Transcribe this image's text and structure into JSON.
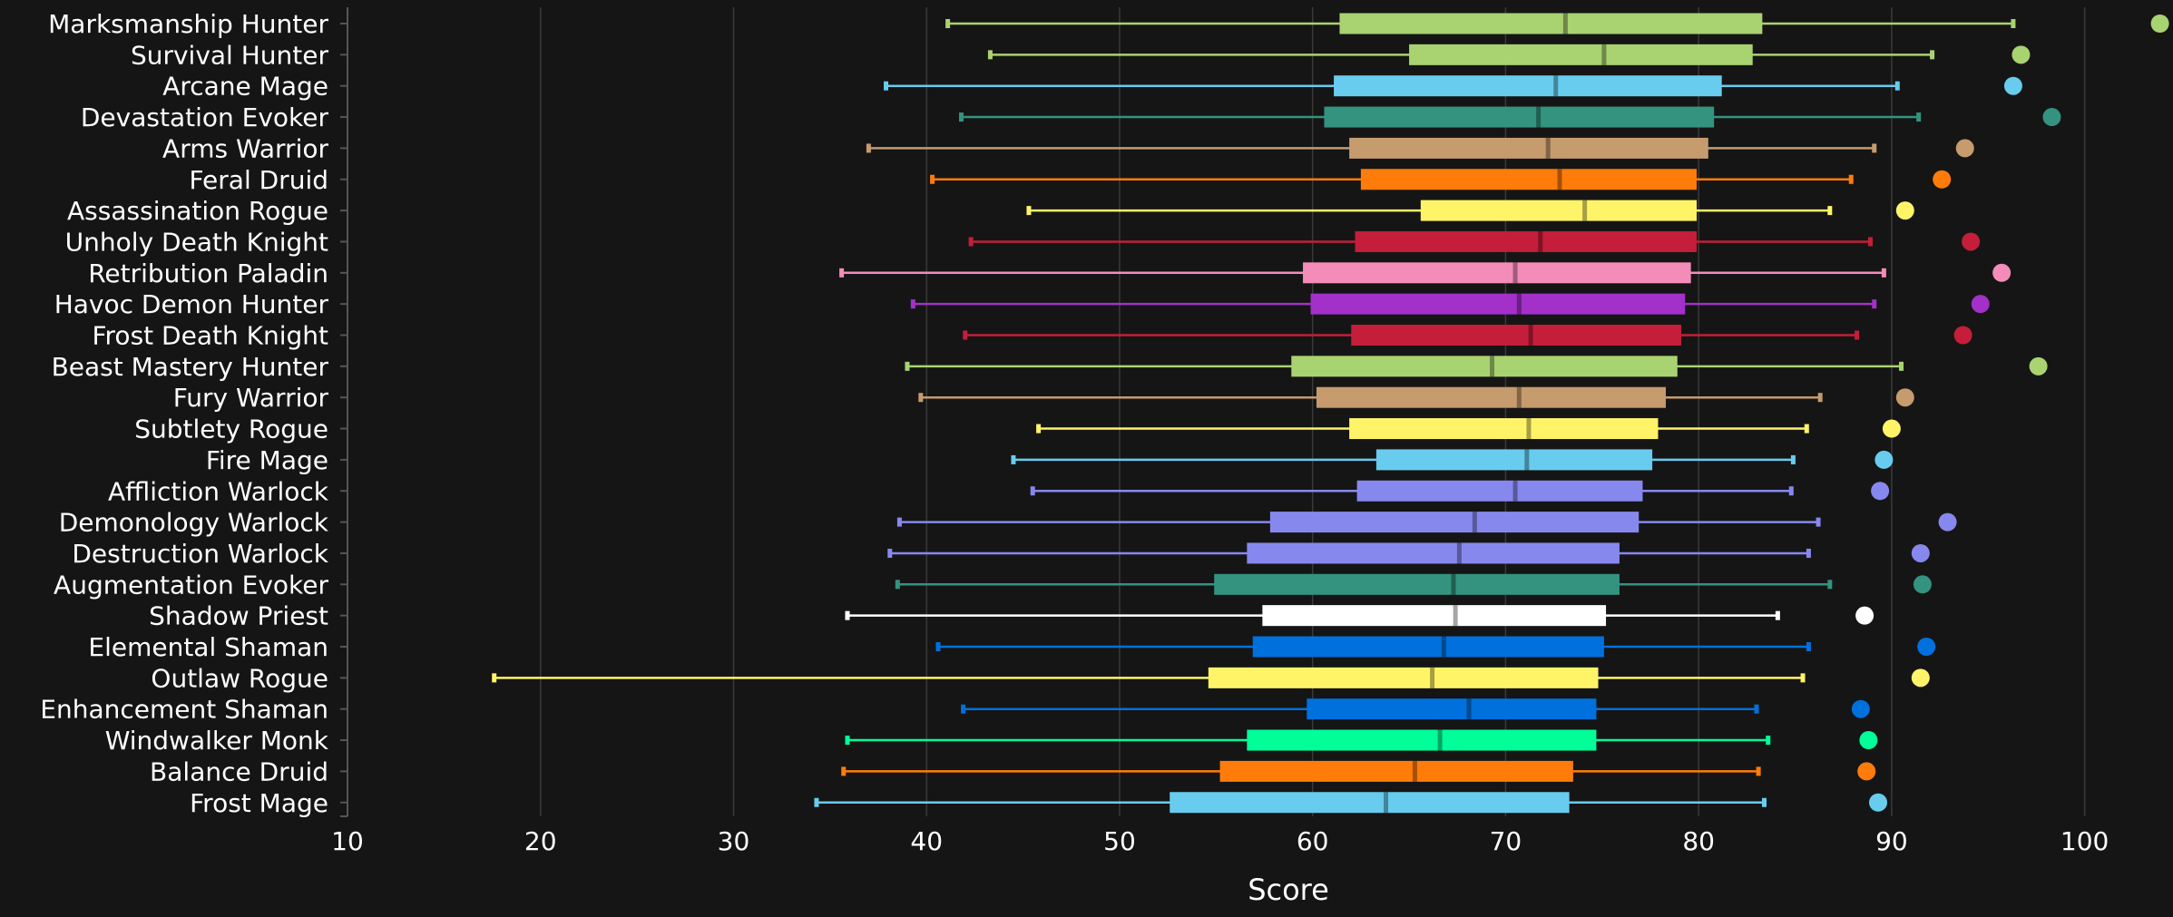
{
  "chart_data": {
    "type": "boxplot",
    "title": "",
    "xlabel": "Score",
    "ylabel": "",
    "xlim": [
      10,
      105
    ],
    "x_ticks": [
      "10",
      "20",
      "30",
      "40",
      "50",
      "60",
      "70",
      "80",
      "90",
      "100"
    ],
    "grid": "vertical",
    "legend": "none",
    "series": [
      {
        "name": "Marksmanship Hunter",
        "color": "#a9d271",
        "min": 41.1,
        "q1": 61.4,
        "median": 73.1,
        "q3": 83.3,
        "max": 96.3,
        "outlier": 103.9
      },
      {
        "name": "Survival Hunter",
        "color": "#a9d271",
        "min": 43.3,
        "q1": 65.0,
        "median": 75.1,
        "q3": 82.8,
        "max": 92.1,
        "outlier": 96.7
      },
      {
        "name": "Arcane Mage",
        "color": "#68ccef",
        "min": 37.9,
        "q1": 61.1,
        "median": 72.6,
        "q3": 81.2,
        "max": 90.3,
        "outlier": 96.3
      },
      {
        "name": "Devastation Evoker",
        "color": "#33937f",
        "min": 41.8,
        "q1": 60.6,
        "median": 71.7,
        "q3": 80.8,
        "max": 91.4,
        "outlier": 98.3
      },
      {
        "name": "Arms Warrior",
        "color": "#c69b6d",
        "min": 37.0,
        "q1": 61.9,
        "median": 72.2,
        "q3": 80.5,
        "max": 89.1,
        "outlier": 93.8
      },
      {
        "name": "Feral Druid",
        "color": "#ff7c0a",
        "min": 40.3,
        "q1": 62.5,
        "median": 72.8,
        "q3": 79.9,
        "max": 87.9,
        "outlier": 92.6
      },
      {
        "name": "Assassination Rogue",
        "color": "#fff468",
        "min": 45.3,
        "q1": 65.6,
        "median": 74.1,
        "q3": 79.9,
        "max": 86.8,
        "outlier": 90.7
      },
      {
        "name": "Unholy Death Knight",
        "color": "#c41e3a",
        "min": 42.3,
        "q1": 62.2,
        "median": 71.8,
        "q3": 79.9,
        "max": 88.9,
        "outlier": 94.1
      },
      {
        "name": "Retribution Paladin",
        "color": "#f48cba",
        "min": 35.6,
        "q1": 59.5,
        "median": 70.5,
        "q3": 79.6,
        "max": 89.6,
        "outlier": 95.7
      },
      {
        "name": "Havoc Demon Hunter",
        "color": "#a330c9",
        "min": 39.3,
        "q1": 59.9,
        "median": 70.7,
        "q3": 79.3,
        "max": 89.1,
        "outlier": 94.6
      },
      {
        "name": "Frost Death Knight",
        "color": "#c41e3a",
        "min": 42.0,
        "q1": 62.0,
        "median": 71.3,
        "q3": 79.1,
        "max": 88.2,
        "outlier": 93.7
      },
      {
        "name": "Beast Mastery Hunter",
        "color": "#a9d271",
        "min": 39.0,
        "q1": 58.9,
        "median": 69.3,
        "q3": 78.9,
        "max": 90.5,
        "outlier": 97.6
      },
      {
        "name": "Fury Warrior",
        "color": "#c69b6d",
        "min": 39.7,
        "q1": 60.2,
        "median": 70.7,
        "q3": 78.3,
        "max": 86.3,
        "outlier": 90.7
      },
      {
        "name": "Subtlety Rogue",
        "color": "#fff468",
        "min": 45.8,
        "q1": 61.9,
        "median": 71.2,
        "q3": 77.9,
        "max": 85.6,
        "outlier": 90.0
      },
      {
        "name": "Fire Mage",
        "color": "#68ccef",
        "min": 44.5,
        "q1": 63.3,
        "median": 71.1,
        "q3": 77.6,
        "max": 84.9,
        "outlier": 89.6
      },
      {
        "name": "Affliction Warlock",
        "color": "#8788ee",
        "min": 45.5,
        "q1": 62.3,
        "median": 70.5,
        "q3": 77.1,
        "max": 84.8,
        "outlier": 89.4
      },
      {
        "name": "Demonology Warlock",
        "color": "#8788ee",
        "min": 38.6,
        "q1": 57.8,
        "median": 68.4,
        "q3": 76.9,
        "max": 86.2,
        "outlier": 92.9
      },
      {
        "name": "Destruction Warlock",
        "color": "#8788ee",
        "min": 38.1,
        "q1": 56.6,
        "median": 67.6,
        "q3": 75.9,
        "max": 85.7,
        "outlier": 91.5
      },
      {
        "name": "Augmentation Evoker",
        "color": "#33937f",
        "min": 38.5,
        "q1": 54.9,
        "median": 67.3,
        "q3": 75.9,
        "max": 86.8,
        "outlier": 91.6
      },
      {
        "name": "Shadow Priest",
        "color": "#ffffff",
        "min": 35.9,
        "q1": 57.4,
        "median": 67.4,
        "q3": 75.2,
        "max": 84.1,
        "outlier": 88.6
      },
      {
        "name": "Elemental Shaman",
        "color": "#0070dd",
        "min": 40.6,
        "q1": 56.9,
        "median": 66.8,
        "q3": 75.1,
        "max": 85.7,
        "outlier": 91.8
      },
      {
        "name": "Outlaw Rogue",
        "color": "#fff468",
        "min": 17.6,
        "q1": 54.6,
        "median": 66.2,
        "q3": 74.8,
        "max": 85.4,
        "outlier": 91.5
      },
      {
        "name": "Enhancement Shaman",
        "color": "#0070dd",
        "min": 41.9,
        "q1": 59.7,
        "median": 68.1,
        "q3": 74.7,
        "max": 83.0,
        "outlier": 88.4
      },
      {
        "name": "Windwalker Monk",
        "color": "#00ff98",
        "min": 35.9,
        "q1": 56.6,
        "median": 66.6,
        "q3": 74.7,
        "max": 83.6,
        "outlier": 88.8
      },
      {
        "name": "Balance Druid",
        "color": "#ff7c0a",
        "min": 35.7,
        "q1": 55.2,
        "median": 65.3,
        "q3": 73.5,
        "max": 83.1,
        "outlier": 88.7
      },
      {
        "name": "Frost Mage",
        "color": "#68ccef",
        "min": 34.3,
        "q1": 52.6,
        "median": 63.8,
        "q3": 73.3,
        "max": 83.4,
        "outlier": 89.3
      }
    ]
  }
}
